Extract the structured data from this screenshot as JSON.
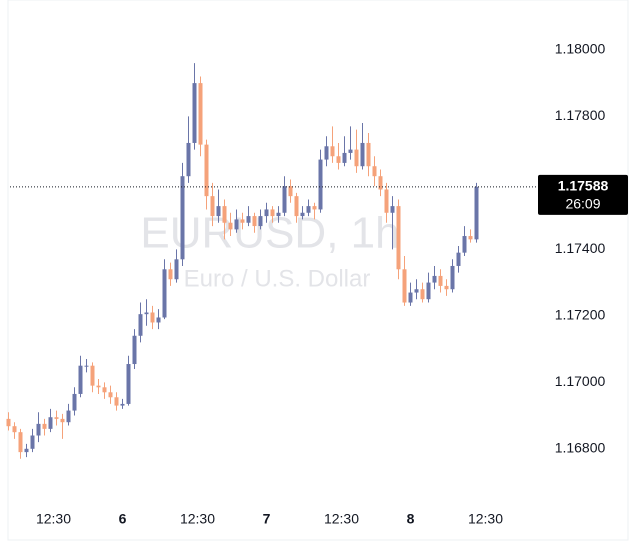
{
  "chart_data": {
    "type": "candlestick",
    "title": "EURUSD, 1h",
    "subtitle": "Euro / U.S. Dollar",
    "up_color": "#6a75a8",
    "down_color": "#f5a27a",
    "x": [
      -19,
      -18,
      -17,
      -16,
      -15,
      -14,
      -13,
      -12,
      -11,
      -10,
      -9,
      -8,
      -7,
      -6,
      -5,
      -4,
      -3,
      -2,
      -1,
      0,
      1,
      2,
      3,
      4,
      5,
      6,
      7,
      8,
      9,
      10,
      11,
      12,
      13,
      14,
      15,
      16,
      17,
      18,
      19,
      20,
      21,
      22,
      23,
      24,
      25,
      26,
      27,
      28,
      29,
      30,
      31,
      32,
      33,
      34,
      35,
      36,
      37,
      38,
      39,
      40,
      41,
      42,
      43,
      44,
      45,
      46,
      47,
      48,
      49,
      50,
      51,
      52,
      53,
      54,
      55,
      56,
      57,
      58,
      59
    ],
    "open": [
      1.1689,
      1.16868,
      1.1685,
      1.1679,
      1.168,
      1.1684,
      1.16875,
      1.1686,
      1.16895,
      1.1689,
      1.1688,
      1.16915,
      1.16965,
      1.1705,
      1.1705,
      1.1699,
      1.16985,
      1.1697,
      1.16955,
      1.1693,
      1.16935,
      1.17055,
      1.1714,
      1.17205,
      1.1721,
      1.1718,
      1.17195,
      1.1734,
      1.1731,
      1.1737,
      1.1762,
      1.1772,
      1.179,
      1.17715,
      1.1756,
      1.175,
      1.1753,
      1.1748,
      1.1746,
      1.1749,
      1.1748,
      1.175,
      1.1747,
      1.175,
      1.1752,
      1.175,
      1.1751,
      1.1759,
      1.1756,
      1.175,
      1.1751,
      1.1753,
      1.1752,
      1.1767,
      1.1771,
      1.1768,
      1.1766,
      1.1769,
      1.177,
      1.1765,
      1.1772,
      1.1765,
      1.1762,
      1.1758,
      1.1751,
      1.1753,
      1.1734,
      1.1724,
      1.1727,
      1.1728,
      1.1725,
      1.173,
      1.1732,
      1.1729,
      1.1728,
      1.1735,
      1.1739,
      1.1744,
      1.1743
    ],
    "high": [
      1.1691,
      1.1688,
      1.1686,
      1.16815,
      1.1686,
      1.1691,
      1.1689,
      1.1692,
      1.16915,
      1.16905,
      1.16935,
      1.16985,
      1.1708,
      1.1707,
      1.1706,
      1.1701,
      1.17,
      1.1699,
      1.1697,
      1.1695,
      1.1708,
      1.1716,
      1.1724,
      1.1725,
      1.1723,
      1.1722,
      1.1737,
      1.1736,
      1.174,
      1.1766,
      1.178,
      1.1796,
      1.1792,
      1.1773,
      1.176,
      1.1758,
      1.1755,
      1.1751,
      1.1752,
      1.1751,
      1.1753,
      1.1751,
      1.1752,
      1.1754,
      1.1753,
      1.1753,
      1.1762,
      1.1761,
      1.1757,
      1.1753,
      1.1755,
      1.1754,
      1.177,
      1.1774,
      1.1777,
      1.1772,
      1.1774,
      1.1777,
      1.1776,
      1.1778,
      1.1775,
      1.1768,
      1.1764,
      1.176,
      1.1756,
      1.1755,
      1.1738,
      1.173,
      1.1731,
      1.173,
      1.1733,
      1.1735,
      1.1734,
      1.1731,
      1.1737,
      1.1741,
      1.1747,
      1.1746,
      1.176
    ],
    "low": [
      1.16855,
      1.1683,
      1.1677,
      1.16775,
      1.1679,
      1.1682,
      1.1684,
      1.1685,
      1.1687,
      1.1683,
      1.1687,
      1.169,
      1.16955,
      1.1703,
      1.1697,
      1.16965,
      1.1695,
      1.16935,
      1.16915,
      1.1692,
      1.1693,
      1.1704,
      1.1712,
      1.1717,
      1.1716,
      1.1716,
      1.1719,
      1.1729,
      1.173,
      1.1735,
      1.176,
      1.177,
      1.1768,
      1.1752,
      1.1747,
      1.1748,
      1.1743,
      1.1744,
      1.1745,
      1.1746,
      1.1747,
      1.1745,
      1.1746,
      1.1748,
      1.1748,
      1.1748,
      1.175,
      1.1754,
      1.1748,
      1.1749,
      1.175,
      1.1749,
      1.1751,
      1.1765,
      1.1766,
      1.1764,
      1.1765,
      1.1767,
      1.1763,
      1.1764,
      1.1762,
      1.1759,
      1.1756,
      1.1748,
      1.174,
      1.1731,
      1.1723,
      1.1723,
      1.1725,
      1.1724,
      1.1724,
      1.1728,
      1.1727,
      1.1726,
      1.1727,
      1.1733,
      1.1738,
      1.1742,
      1.1742
    ],
    "close": [
      1.16868,
      1.1685,
      1.1679,
      1.168,
      1.1684,
      1.16875,
      1.1686,
      1.16895,
      1.1689,
      1.1688,
      1.16915,
      1.16965,
      1.1705,
      1.1705,
      1.1699,
      1.16985,
      1.1697,
      1.16955,
      1.1693,
      1.16935,
      1.17055,
      1.1714,
      1.17205,
      1.1721,
      1.1718,
      1.17195,
      1.1734,
      1.1731,
      1.1737,
      1.1762,
      1.1772,
      1.179,
      1.17715,
      1.1756,
      1.175,
      1.1753,
      1.1748,
      1.1746,
      1.1749,
      1.1748,
      1.175,
      1.1747,
      1.175,
      1.1752,
      1.175,
      1.1751,
      1.1759,
      1.1756,
      1.175,
      1.1751,
      1.1753,
      1.1752,
      1.1767,
      1.1771,
      1.1768,
      1.1766,
      1.1769,
      1.177,
      1.1765,
      1.1772,
      1.1765,
      1.1762,
      1.1758,
      1.1751,
      1.1753,
      1.1734,
      1.1724,
      1.1727,
      1.1728,
      1.1725,
      1.173,
      1.1732,
      1.1729,
      1.1728,
      1.1735,
      1.1739,
      1.1744,
      1.1743,
      1.17588
    ],
    "last_price": {
      "value": 1.17588,
      "label": "1.17588"
    },
    "countdown": "26:09",
    "xlim": [
      -18.75,
      68.75
    ],
    "xticks": [
      {
        "value": -11.5,
        "label": "12:30"
      },
      {
        "value": 0,
        "label": "6"
      },
      {
        "value": 12.5,
        "label": "12:30"
      },
      {
        "value": 24,
        "label": "7"
      },
      {
        "value": 36.5,
        "label": "12:30"
      },
      {
        "value": 48,
        "label": "8"
      },
      {
        "value": 60.5,
        "label": "12:30"
      }
    ],
    "ylim": [
      1.16646,
      1.1815
    ],
    "yticks": [
      {
        "value": 1.18,
        "label": "1.18000"
      },
      {
        "value": 1.178,
        "label": "1.17800"
      },
      {
        "value": 1.176,
        "label": "1.17600"
      },
      {
        "value": 1.174,
        "label": "1.17400"
      },
      {
        "value": 1.172,
        "label": "1.17200"
      },
      {
        "value": 1.17,
        "label": "1.17000"
      },
      {
        "value": 1.168,
        "label": "1.16800"
      }
    ]
  }
}
